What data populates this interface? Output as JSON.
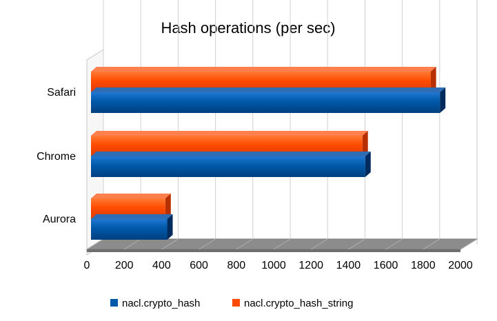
{
  "chart_data": {
    "type": "bar",
    "orientation": "horizontal",
    "style": "3d",
    "title": "Hash operations (per sec)",
    "xlabel": "",
    "ylabel": "",
    "xlim": [
      0,
      2000
    ],
    "x_ticks": [
      "0",
      "200",
      "400",
      "600",
      "800",
      "1000",
      "1200",
      "1400",
      "1600",
      "1800",
      "2000"
    ],
    "grid": true,
    "legend_position": "bottom",
    "categories": [
      "Safari",
      "Chrome",
      "Aurora"
    ],
    "series": [
      {
        "name": "nacl.crypto_hash",
        "color": "#0058A8",
        "values": [
          1890,
          1490,
          430
        ]
      },
      {
        "name": "nacl.crypto_hash_string",
        "color": "#FF4B00",
        "values": [
          1840,
          1475,
          420
        ]
      }
    ]
  }
}
